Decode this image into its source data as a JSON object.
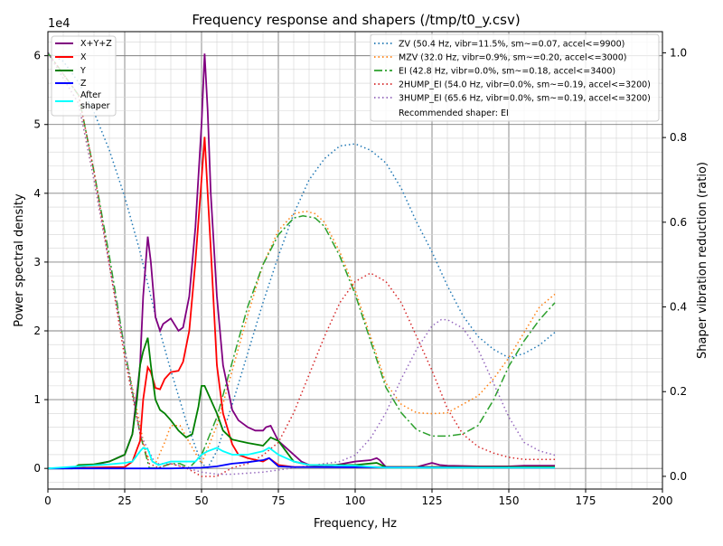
{
  "chart_data": {
    "type": "line",
    "title": "Frequency response and shapers (/tmp/t0_y.csv)",
    "xlabel": "Frequency, Hz",
    "ylabel": "Power spectral density",
    "y2label": "Shaper vibration reduction (ratio)",
    "y_offset_label": "1e4",
    "xlim": [
      0,
      200
    ],
    "ylim": [
      -0.3,
      6.35
    ],
    "y2lim": [
      -0.03,
      1.05
    ],
    "xticks": [
      "0",
      "25",
      "50",
      "75",
      "100",
      "125",
      "150",
      "175",
      "200"
    ],
    "yticks": [
      "0",
      "1",
      "2",
      "3",
      "4",
      "5",
      "6"
    ],
    "y2ticks": [
      "0.0",
      "0.2",
      "0.4",
      "0.6",
      "0.8",
      "1.0"
    ],
    "grid": true,
    "psd_legend_placement": "top-left",
    "shaper_legend_placement": "top-right",
    "psd_series": [
      {
        "name": "X+Y+Z",
        "color": "#800080",
        "x": [
          0,
          5,
          10,
          15,
          20,
          25,
          27.5,
          30,
          31,
          32.5,
          33.5,
          35,
          36.5,
          37.5,
          40,
          42.5,
          44,
          46,
          48,
          50,
          51,
          52,
          53,
          55,
          57,
          60,
          62,
          65,
          67.5,
          70,
          71,
          72.5,
          75,
          77.5,
          80,
          82.5,
          85,
          90,
          100,
          105,
          107,
          108,
          110,
          120,
          125,
          127.5,
          130,
          140,
          150,
          155,
          165
        ],
        "y": [
          0,
          0,
          0.03,
          0.05,
          0.1,
          0.2,
          0.5,
          1.5,
          2.5,
          3.37,
          3.0,
          2.2,
          2.0,
          2.1,
          2.18,
          2.0,
          2.05,
          2.5,
          3.5,
          5.0,
          6.03,
          5.2,
          4.0,
          2.5,
          1.5,
          0.85,
          0.7,
          0.6,
          0.55,
          0.55,
          0.6,
          0.62,
          0.4,
          0.3,
          0.2,
          0.1,
          0.05,
          0.02,
          0.1,
          0.12,
          0.15,
          0.12,
          0.02,
          0.02,
          0.08,
          0.05,
          0.04,
          0.03,
          0.03,
          0.04,
          0.04
        ]
      },
      {
        "name": "X",
        "color": "#ff0000",
        "x": [
          0,
          25,
          27.5,
          30,
          31,
          32.5,
          33.5,
          35,
          36.5,
          38,
          40,
          42.5,
          44,
          46,
          48,
          50,
          51,
          52,
          53,
          55,
          57,
          60,
          62,
          65,
          70,
          72,
          75,
          80,
          165
        ],
        "y": [
          0,
          0.02,
          0.1,
          0.4,
          1.0,
          1.47,
          1.4,
          1.17,
          1.15,
          1.3,
          1.4,
          1.42,
          1.55,
          2.0,
          3.0,
          4.2,
          4.82,
          4.0,
          3.2,
          1.5,
          0.8,
          0.35,
          0.2,
          0.15,
          0.1,
          0.15,
          0.05,
          0.02,
          0.02
        ]
      },
      {
        "name": "Y",
        "color": "#008000",
        "x": [
          0,
          8,
          10,
          15,
          20,
          25,
          27.5,
          29,
          30,
          31,
          32.5,
          33.5,
          35,
          36.5,
          38,
          40,
          42.5,
          45,
          47,
          49,
          50,
          51,
          52,
          55,
          57,
          60,
          62,
          65,
          70,
          72.5,
          75,
          77.5,
          80,
          85,
          100,
          107,
          110,
          165
        ],
        "y": [
          0,
          0,
          0.05,
          0.06,
          0.1,
          0.2,
          0.5,
          1.0,
          1.5,
          1.7,
          1.9,
          1.5,
          1.0,
          0.85,
          0.8,
          0.7,
          0.55,
          0.45,
          0.5,
          0.9,
          1.2,
          1.2,
          1.1,
          0.8,
          0.55,
          0.42,
          0.4,
          0.37,
          0.33,
          0.45,
          0.4,
          0.25,
          0.1,
          0.05,
          0.05,
          0.08,
          0.02,
          0.02
        ]
      },
      {
        "name": "Z",
        "color": "#0000ff",
        "x": [
          0,
          40,
          50,
          55,
          60,
          65,
          70,
          72,
          75,
          80,
          165
        ],
        "y": [
          0,
          0,
          0.01,
          0.03,
          0.07,
          0.09,
          0.12,
          0.15,
          0.03,
          0.02,
          0.01
        ]
      },
      {
        "name": "After\nshaper",
        "color": "#00ffff",
        "x": [
          0,
          10,
          20,
          25,
          27.5,
          30,
          31,
          32.5,
          34,
          36,
          40,
          45,
          48,
          50,
          52,
          55,
          57,
          60,
          65,
          70,
          72,
          75,
          80,
          85,
          100,
          110,
          165
        ],
        "y": [
          0,
          0.03,
          0.06,
          0.08,
          0.1,
          0.25,
          0.3,
          0.28,
          0.1,
          0.05,
          0.1,
          0.1,
          0.1,
          0.2,
          0.25,
          0.3,
          0.25,
          0.2,
          0.2,
          0.25,
          0.3,
          0.2,
          0.1,
          0.05,
          0.04,
          0.01,
          0.01
        ]
      }
    ],
    "shaper_series": [
      {
        "name": "ZV (50.4 Hz, vibr=11.5%, sm~=0.07, accel<=9900)",
        "color": "#1f77b4",
        "style": "dotted",
        "x": [
          0,
          5,
          10,
          15,
          20,
          25,
          30,
          35,
          40,
          45,
          50,
          52,
          55,
          60,
          65,
          70,
          75,
          80,
          85,
          90,
          95,
          100,
          105,
          110,
          115,
          120,
          125,
          130,
          135,
          140,
          145,
          150,
          155,
          160,
          165
        ],
        "y": [
          1.0,
          0.98,
          0.93,
          0.86,
          0.77,
          0.66,
          0.53,
          0.38,
          0.25,
          0.13,
          0.03,
          0.02,
          0.06,
          0.17,
          0.29,
          0.41,
          0.52,
          0.62,
          0.7,
          0.75,
          0.78,
          0.785,
          0.77,
          0.74,
          0.68,
          0.6,
          0.53,
          0.45,
          0.38,
          0.33,
          0.3,
          0.28,
          0.29,
          0.31,
          0.34
        ]
      },
      {
        "name": "MZV (32.0 Hz, vibr=0.9%, sm~=0.20, accel<=3000)",
        "color": "#ff7f0e",
        "style": "dotted",
        "x": [
          0,
          10,
          15,
          20,
          25,
          30,
          32,
          35,
          38,
          40,
          43,
          46,
          50,
          55,
          60,
          65,
          70,
          75,
          80,
          84,
          87,
          90,
          95,
          100,
          105,
          110,
          115,
          120,
          125,
          130,
          135,
          140,
          145,
          150,
          155,
          160,
          165
        ],
        "y": [
          1.0,
          0.88,
          0.7,
          0.5,
          0.3,
          0.12,
          0.05,
          0.03,
          0.08,
          0.12,
          0.12,
          0.08,
          0.03,
          0.12,
          0.25,
          0.38,
          0.5,
          0.58,
          0.62,
          0.626,
          0.62,
          0.6,
          0.53,
          0.44,
          0.33,
          0.22,
          0.17,
          0.15,
          0.148,
          0.15,
          0.17,
          0.19,
          0.23,
          0.28,
          0.34,
          0.4,
          0.43
        ]
      },
      {
        "name": "EI (42.8 Hz, vibr=0.0%, sm~=0.18, accel<=3400)",
        "color": "#2ca02c",
        "style": "dashdot",
        "x": [
          0,
          10,
          15,
          20,
          25,
          30,
          33,
          36,
          40,
          43,
          46,
          50,
          55,
          60,
          65,
          70,
          75,
          80,
          83,
          87,
          90,
          95,
          100,
          105,
          110,
          115,
          120,
          125,
          130,
          135,
          140,
          145,
          150,
          155,
          160,
          165
        ],
        "y": [
          1.0,
          0.9,
          0.72,
          0.52,
          0.3,
          0.1,
          0.02,
          0.02,
          0.03,
          0.03,
          0.02,
          0.05,
          0.14,
          0.27,
          0.4,
          0.5,
          0.57,
          0.61,
          0.615,
          0.61,
          0.59,
          0.52,
          0.43,
          0.32,
          0.21,
          0.15,
          0.11,
          0.095,
          0.095,
          0.1,
          0.12,
          0.18,
          0.26,
          0.32,
          0.37,
          0.41
        ]
      },
      {
        "name": "2HUMP_EI (54.0 Hz, vibr=0.0%, sm~=0.19, accel<=3200)",
        "color": "#d62728",
        "style": "dotted",
        "x": [
          0,
          10,
          15,
          20,
          25,
          30,
          33,
          36,
          40,
          45,
          50,
          55,
          60,
          65,
          70,
          75,
          80,
          85,
          90,
          95,
          100,
          105,
          110,
          115,
          120,
          125,
          130,
          135,
          140,
          145,
          150,
          155,
          165
        ],
        "y": [
          1.0,
          0.9,
          0.72,
          0.5,
          0.28,
          0.1,
          0.03,
          0.02,
          0.03,
          0.02,
          0.0,
          0.0,
          0.02,
          0.03,
          0.05,
          0.08,
          0.15,
          0.24,
          0.33,
          0.41,
          0.46,
          0.48,
          0.46,
          0.41,
          0.33,
          0.25,
          0.16,
          0.1,
          0.07,
          0.055,
          0.045,
          0.04,
          0.04
        ]
      },
      {
        "name": "3HUMP_EI (65.6 Hz, vibr=0.0%, sm~=0.19, accel<=3200)",
        "color": "#9467bd",
        "style": "dotted",
        "x": [
          0,
          10,
          15,
          20,
          25,
          30,
          35,
          40,
          45,
          50,
          55,
          60,
          70,
          75,
          80,
          85,
          90,
          95,
          100,
          105,
          110,
          115,
          120,
          125,
          128,
          130,
          135,
          140,
          145,
          150,
          155,
          160,
          165
        ],
        "y": [
          1.0,
          0.88,
          0.7,
          0.5,
          0.3,
          0.1,
          0.03,
          0.03,
          0.02,
          0.01,
          0.005,
          0.005,
          0.01,
          0.015,
          0.02,
          0.025,
          0.03,
          0.035,
          0.05,
          0.09,
          0.15,
          0.23,
          0.3,
          0.355,
          0.37,
          0.37,
          0.35,
          0.3,
          0.22,
          0.14,
          0.08,
          0.06,
          0.05
        ]
      }
    ],
    "recommended": "Recommended shaper: EI"
  }
}
